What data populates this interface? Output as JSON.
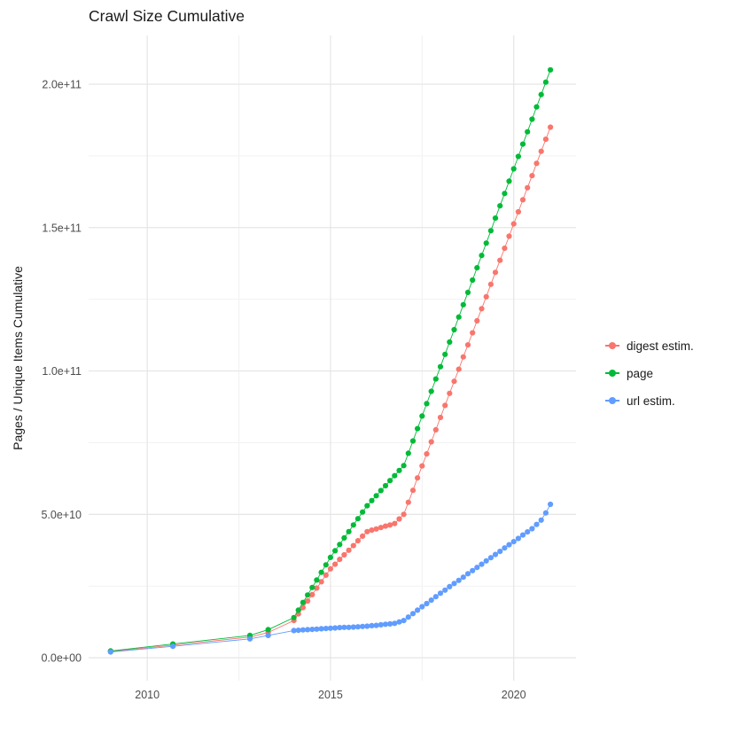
{
  "page": {
    "background": "#ffffff"
  },
  "chart_data": {
    "type": "line",
    "marker": "circle",
    "title": "Crawl Size Cumulative",
    "xlabel": "",
    "ylabel": "Pages / Unique Items Cumulative",
    "value_unit": "1e9 (billions of pages / unique items)",
    "legend_position": "right",
    "grid": true,
    "xlim": [
      2008.4,
      2021.7
    ],
    "ylim": [
      -8,
      217
    ],
    "x_ticks": {
      "values": [
        2010,
        2015,
        2020
      ],
      "labels": [
        "2010",
        "2015",
        "2020"
      ],
      "minor": [
        2012.5,
        2017.5
      ]
    },
    "y_ticks": {
      "values": [
        0,
        50,
        100,
        150,
        200
      ],
      "labels": [
        "0.0e+00",
        "5.0e+10",
        "1.0e+11",
        "1.5e+11",
        "2.0e+11"
      ],
      "minor": [
        25,
        75,
        125,
        175
      ]
    },
    "x": [
      2009,
      2010.7,
      2012.8,
      2013.3,
      2014,
      2014.125,
      2014.25,
      2014.375,
      2014.5,
      2014.625,
      2014.75,
      2014.875,
      2015,
      2015.125,
      2015.25,
      2015.375,
      2015.5,
      2015.625,
      2015.75,
      2015.875,
      2016,
      2016.125,
      2016.25,
      2016.375,
      2016.5,
      2016.625,
      2016.75,
      2016.875,
      2017,
      2017.125,
      2017.25,
      2017.375,
      2017.5,
      2017.625,
      2017.75,
      2017.875,
      2018,
      2018.125,
      2018.25,
      2018.375,
      2018.5,
      2018.625,
      2018.75,
      2018.875,
      2019,
      2019.125,
      2019.25,
      2019.375,
      2019.5,
      2019.625,
      2019.75,
      2019.875,
      2020,
      2020.125,
      2020.25,
      2020.375,
      2020.5,
      2020.625,
      2020.75,
      2020.875,
      2021
    ],
    "series": [
      {
        "name": "digest estim.",
        "color": "#F8766D",
        "values": [
          2.2,
          4.4,
          7.2,
          8.8,
          13,
          15.3,
          17.5,
          19.8,
          22,
          24.3,
          26.5,
          28.8,
          31,
          32.6,
          34.3,
          35.9,
          37.5,
          39.1,
          40.8,
          42.4,
          44,
          44.5,
          44.9,
          45.4,
          45.9,
          46.3,
          46.8,
          48.4,
          50,
          54.2,
          58.4,
          62.7,
          66.9,
          71.1,
          75.3,
          79.5,
          83.8,
          88,
          92.2,
          96.4,
          100.6,
          104.9,
          109.1,
          113.3,
          117.5,
          121.7,
          125.9,
          130.2,
          134.4,
          138.6,
          142.8,
          147,
          151.3,
          155.5,
          159.7,
          163.9,
          168.1,
          172.4,
          176.6,
          180.8,
          185
        ]
      },
      {
        "name": "page",
        "color": "#00BA38",
        "values": [
          2.4,
          4.8,
          7.8,
          9.8,
          14,
          16.6,
          19.3,
          21.9,
          24.5,
          27.1,
          29.8,
          32.4,
          35,
          37.3,
          39.5,
          41.8,
          44,
          46.3,
          48.5,
          50.8,
          53,
          54.8,
          56.5,
          58.3,
          60,
          61.8,
          63.5,
          65.3,
          67,
          71.3,
          75.6,
          79.9,
          84.3,
          88.6,
          92.9,
          97.2,
          101.5,
          105.8,
          110.1,
          114.4,
          118.8,
          123.1,
          127.4,
          131.7,
          136,
          140.3,
          144.6,
          148.9,
          153.3,
          157.6,
          161.9,
          166.2,
          170.5,
          174.8,
          179.1,
          183.4,
          187.8,
          192.1,
          196.4,
          200.7,
          205
        ]
      },
      {
        "name": "url estim.",
        "color": "#619CFF",
        "values": [
          2.0,
          4.0,
          6.6,
          7.8,
          9.5,
          9.6,
          9.7,
          9.8,
          9.9,
          10.0,
          10.1,
          10.2,
          10.3,
          10.4,
          10.5,
          10.6,
          10.6,
          10.7,
          10.8,
          10.9,
          11,
          11.2,
          11.3,
          11.5,
          11.7,
          11.8,
          12,
          12.5,
          13,
          14.2,
          15.4,
          16.6,
          17.8,
          18.9,
          20.1,
          21.3,
          22.5,
          23.6,
          24.8,
          25.9,
          27,
          28.1,
          29.3,
          30.4,
          31.5,
          32.6,
          33.8,
          34.9,
          36,
          37.1,
          38.3,
          39.4,
          40.5,
          41.6,
          42.8,
          43.9,
          45,
          46.5,
          48,
          50.5,
          53.5
        ]
      }
    ]
  }
}
